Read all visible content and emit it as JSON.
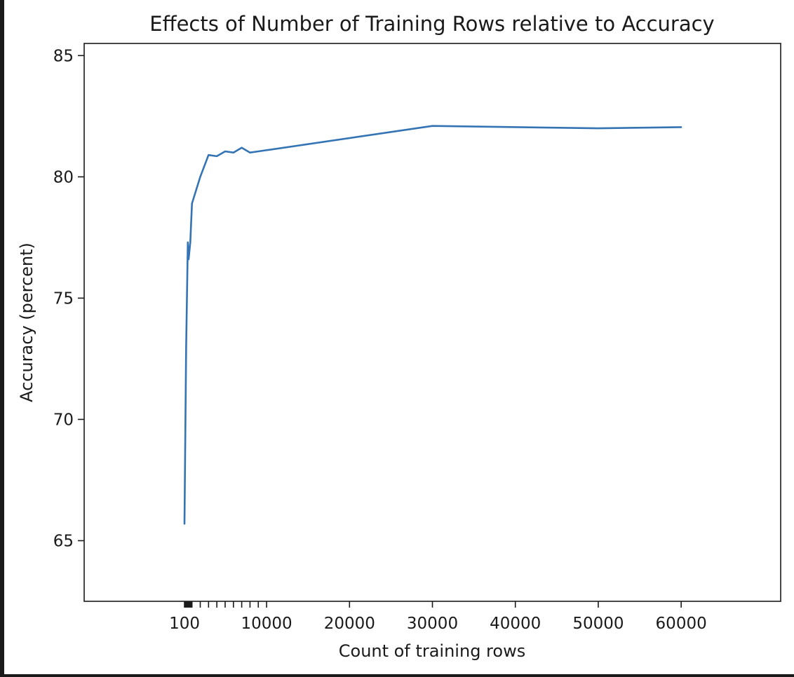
{
  "chart_data": {
    "type": "line",
    "title": "Effects of Number of Training Rows relative to Accuracy",
    "xlabel": "Count of training rows",
    "ylabel": "Accuracy (percent)",
    "xlim": [
      -12000,
      72000
    ],
    "ylim": [
      62.5,
      85.5
    ],
    "grid": false,
    "legend": "none",
    "x_ticks": [
      100,
      200,
      300,
      400,
      500,
      600,
      700,
      800,
      900,
      1000,
      2000,
      3000,
      4000,
      5000,
      6000,
      7000,
      8000,
      9000,
      10000,
      20000,
      30000,
      40000,
      50000,
      60000
    ],
    "x_tick_labels": [
      "100",
      "",
      "",
      "",
      "",
      "",
      "",
      "",
      "",
      "",
      "",
      "",
      "",
      "",
      "",
      "",
      "",
      "",
      "10000",
      "20000",
      "30000",
      "40000",
      "50000",
      "60000"
    ],
    "y_ticks": [
      65,
      70,
      75,
      80,
      85
    ],
    "y_tick_labels": [
      "65",
      "70",
      "75",
      "80",
      "85"
    ],
    "line_color": "#3574b4",
    "series": [
      {
        "x": [
          100,
          300,
          500,
          600,
          800,
          1000,
          2000,
          3000,
          4000,
          5000,
          6000,
          7000,
          8000,
          9000,
          30000,
          50000,
          60000
        ],
        "y": [
          65.7,
          73.0,
          77.3,
          76.6,
          77.3,
          78.9,
          80.0,
          80.9,
          80.85,
          81.05,
          81.0,
          81.2,
          81.0,
          81.05,
          82.1,
          82.0,
          82.05
        ]
      }
    ]
  }
}
